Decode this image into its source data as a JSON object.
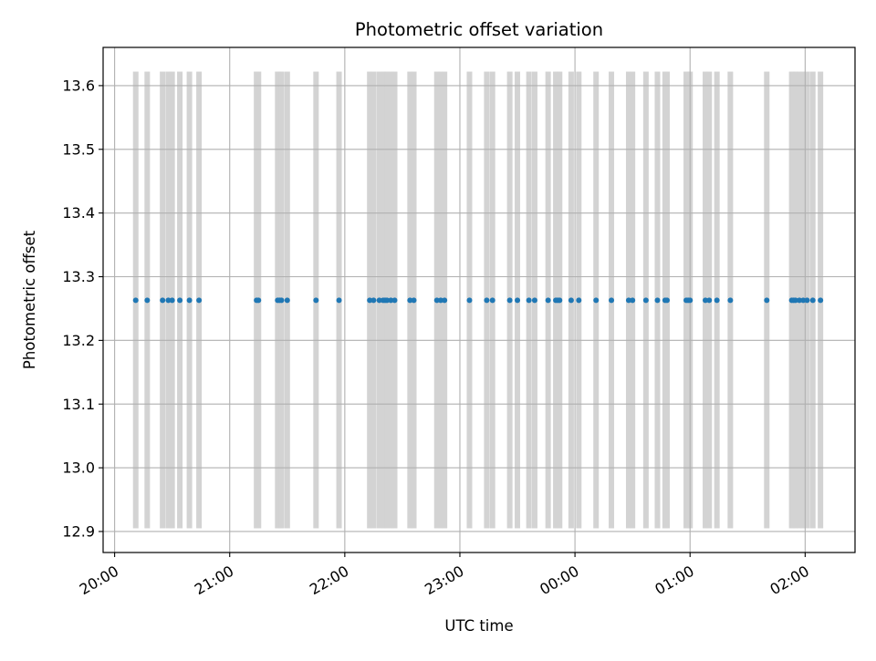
{
  "chart_data": {
    "type": "scatter",
    "title": "Photometric offset variation",
    "xlabel": "UTC time",
    "ylabel": "Photometric offset",
    "x_ticks": [
      "20:00",
      "21:00",
      "22:00",
      "23:00",
      "00:00",
      "01:00",
      "02:00"
    ],
    "x_tick_minutes": [
      1200,
      1260,
      1320,
      1380,
      1440,
      1500,
      1560
    ],
    "y_ticks": [
      "12.9",
      "13.0",
      "13.1",
      "13.2",
      "13.3",
      "13.4",
      "13.5",
      "13.6"
    ],
    "y_tick_values": [
      12.9,
      13.0,
      13.1,
      13.2,
      13.3,
      13.4,
      13.5,
      13.6
    ],
    "xlim": [
      "19:54",
      "02:26"
    ],
    "xlim_minutes": [
      1194,
      1586
    ],
    "ylim": [
      12.867,
      13.66
    ],
    "grid": true,
    "offset_value": 13.263,
    "band_range": [
      12.905,
      13.622
    ],
    "point_color": "#1f77b4",
    "band_color": "#d3d3d3",
    "times": [
      "20:11",
      "20:17",
      "20:25",
      "20:28",
      "20:30",
      "20:34",
      "20:39",
      "20:44",
      "21:14",
      "21:15",
      "21:25",
      "21:26",
      "21:27",
      "21:30",
      "21:45",
      "21:57",
      "22:13",
      "22:15",
      "22:18",
      "22:20",
      "22:21",
      "22:22",
      "22:24",
      "22:26",
      "22:34",
      "22:36",
      "22:48",
      "22:50",
      "22:52",
      "23:05",
      "23:14",
      "23:17",
      "23:26",
      "23:30",
      "23:36",
      "23:39",
      "23:46",
      "23:50",
      "23:51",
      "23:52",
      "23:58",
      "00:02",
      "00:11",
      "00:19",
      "00:28",
      "00:30",
      "00:37",
      "00:43",
      "00:47",
      "00:48",
      "00:58",
      "00:59",
      "01:00",
      "01:08",
      "01:10",
      "01:14",
      "01:21",
      "01:40",
      "01:53",
      "01:54",
      "01:55",
      "01:57",
      "01:59",
      "02:01",
      "02:04",
      "02:08"
    ],
    "offset_values": [
      13.263,
      13.263,
      13.263,
      13.263,
      13.263,
      13.263,
      13.263,
      13.263,
      13.263,
      13.263,
      13.263,
      13.263,
      13.263,
      13.263,
      13.263,
      13.263,
      13.263,
      13.263,
      13.263,
      13.263,
      13.263,
      13.263,
      13.263,
      13.263,
      13.263,
      13.263,
      13.263,
      13.263,
      13.263,
      13.263,
      13.263,
      13.263,
      13.263,
      13.263,
      13.263,
      13.263,
      13.263,
      13.263,
      13.263,
      13.263,
      13.263,
      13.263,
      13.263,
      13.263,
      13.263,
      13.263,
      13.263,
      13.263,
      13.263,
      13.263,
      13.263,
      13.263,
      13.263,
      13.263,
      13.263,
      13.263,
      13.263,
      13.263,
      13.263,
      13.263,
      13.263,
      13.263,
      13.263,
      13.263,
      13.263,
      13.263
    ]
  }
}
